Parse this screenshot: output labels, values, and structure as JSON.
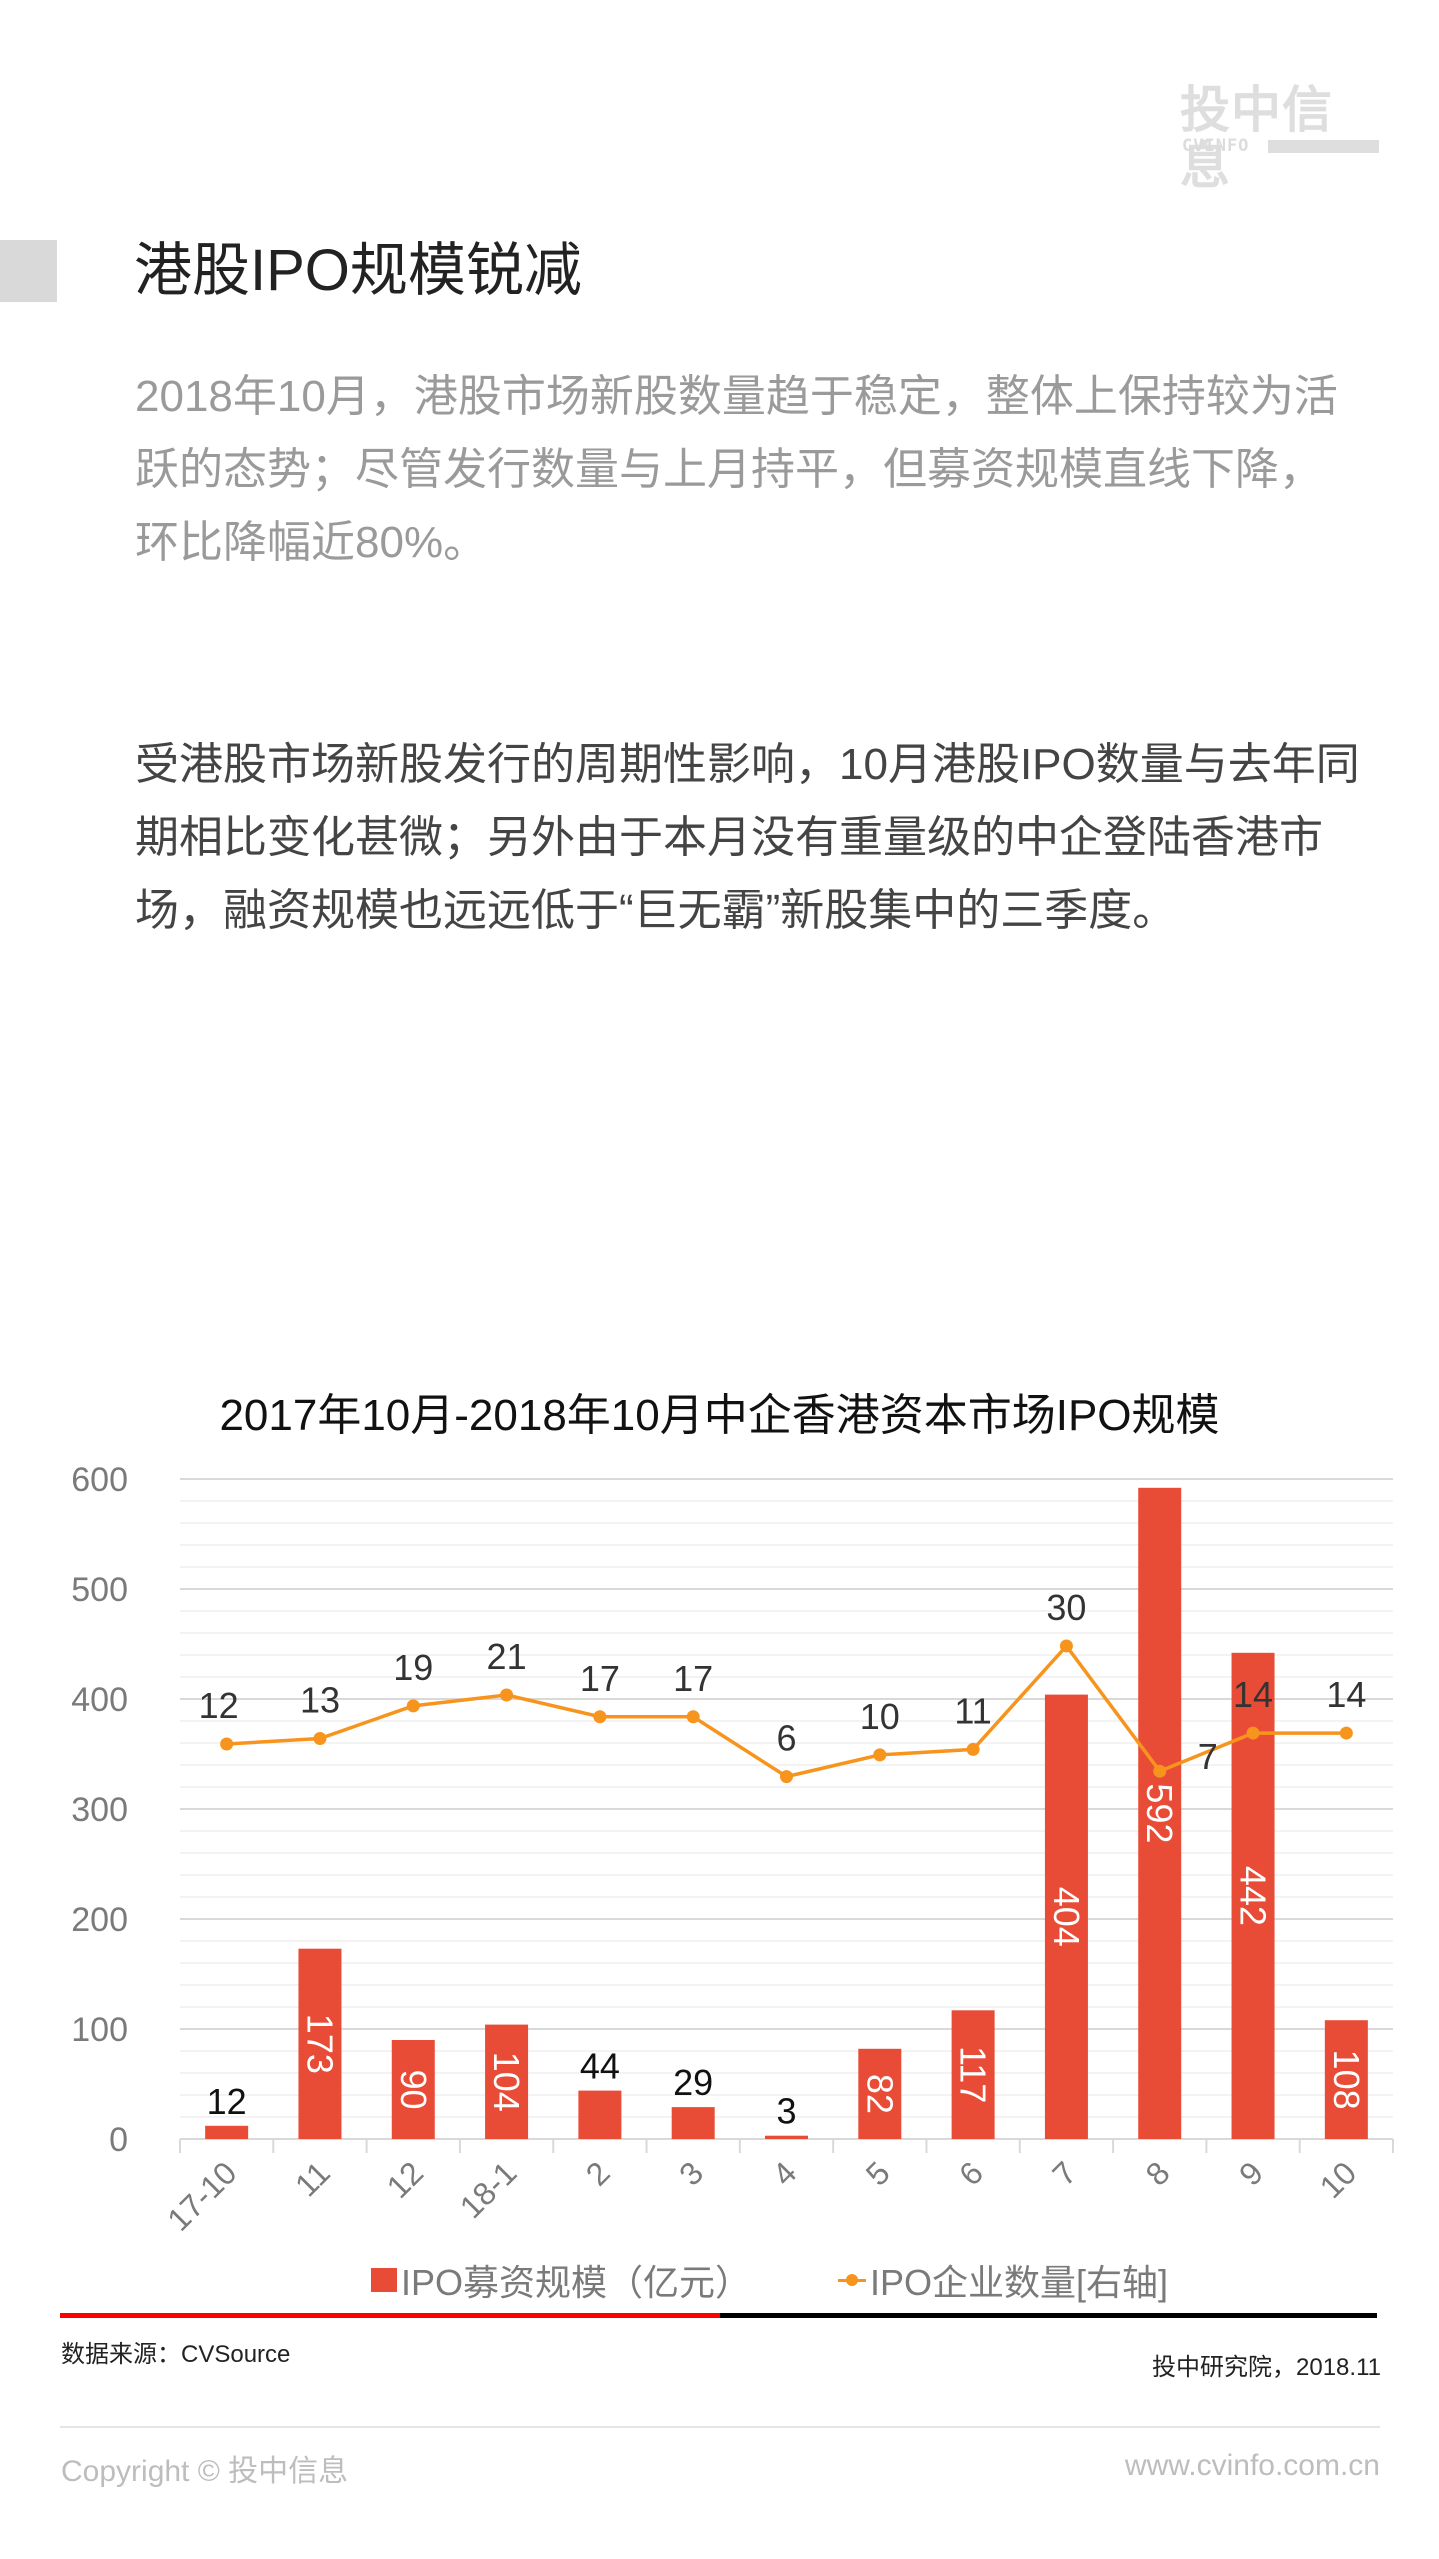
{
  "logo": {
    "cn": "投中信息",
    "en": "CVINFO"
  },
  "page_title": "港股IPO规模锐减",
  "subtitle": "2018年10月，港股市场新股数量趋于稳定，整体上保持较为活跃的态势；尽管发行数量与上月持平，但募资规模直线下降，环比降幅近80%。",
  "body_text": "受港股市场新股发行的周期性影响，10月港股IPO数量与去年同期相比变化甚微；另外由于本月没有重量级的中企登陆香港市场，融资规模也远远低于“巨无霸”新股集中的三季度。",
  "colors": {
    "bar": "#e84c36",
    "line": "#f7941d",
    "grid": "#e6e6e6",
    "axis_text": "#7a7a7a"
  },
  "chart_data": {
    "type": "bar",
    "title": "2017年10月-2018年10月中企香港资本市场IPO规模",
    "xlabel": "",
    "ylabel": "",
    "categories": [
      "17-10",
      "11",
      "12",
      "18-1",
      "2",
      "3",
      "4",
      "5",
      "6",
      "7",
      "8",
      "9",
      "10"
    ],
    "ylim": [
      0,
      600
    ],
    "yticks": [
      0,
      100,
      200,
      300,
      400,
      500,
      600
    ],
    "grid": true,
    "legend_position": "bottom",
    "series": [
      {
        "name": "IPO募资规模（亿元）",
        "type": "bar",
        "axis": "left",
        "values": [
          12,
          173,
          90,
          104,
          44,
          29,
          3,
          82,
          117,
          404,
          592,
          442,
          108
        ]
      },
      {
        "name": "IPO企业数量[右轴]",
        "type": "line",
        "axis": "right",
        "values": [
          12,
          13,
          19,
          21,
          17,
          17,
          6,
          10,
          11,
          30,
          7,
          14,
          14
        ]
      }
    ]
  },
  "legend": {
    "bar_label": "IPO募资规模（亿元）",
    "line_label": "IPO企业数量[右轴]"
  },
  "footer": {
    "source": "数据来源：CVSource",
    "credit": "投中研究院，2018.11",
    "copyright": "Copyright © 投中信息",
    "website": "www.cvinfo.com.cn"
  }
}
